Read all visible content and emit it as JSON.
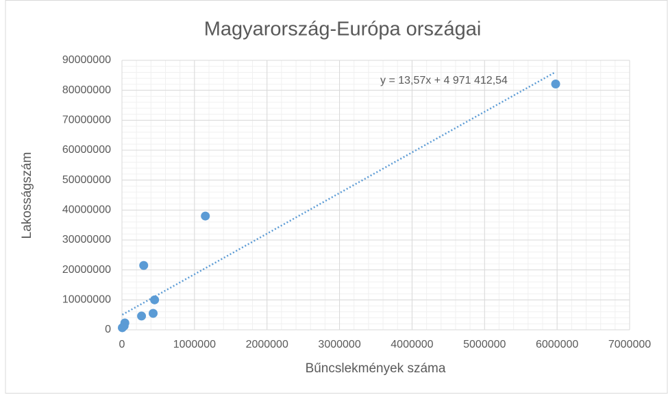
{
  "chart_data": {
    "type": "scatter",
    "title": "Magyarország-Európa  országai",
    "x_label": "Bűncslekmények száma",
    "y_label": "Lakosságszám",
    "color": "#5b9bd5",
    "x": [
      5980000,
      1150000,
      300000,
      450000,
      430000,
      270000,
      40000,
      30000,
      5000
    ],
    "values": [
      82100000,
      38000000,
      21500000,
      10000000,
      5500000,
      4600000,
      2300000,
      1300000,
      700000
    ],
    "xlim": [
      0,
      7000000
    ],
    "xticks": [
      0,
      1000000,
      2000000,
      3000000,
      4000000,
      5000000,
      6000000,
      7000000
    ],
    "ylim": [
      0,
      90000000
    ],
    "yticks": [
      0,
      10000000,
      20000000,
      30000000,
      40000000,
      50000000,
      60000000,
      70000000,
      80000000,
      90000000
    ],
    "grid": true,
    "minor_grid": true,
    "trendline": {
      "slope": 13.57,
      "intercept": 4971412.54,
      "label": "y = 13,57x + 4 971 412,54",
      "color": "#5b9bd5"
    }
  }
}
